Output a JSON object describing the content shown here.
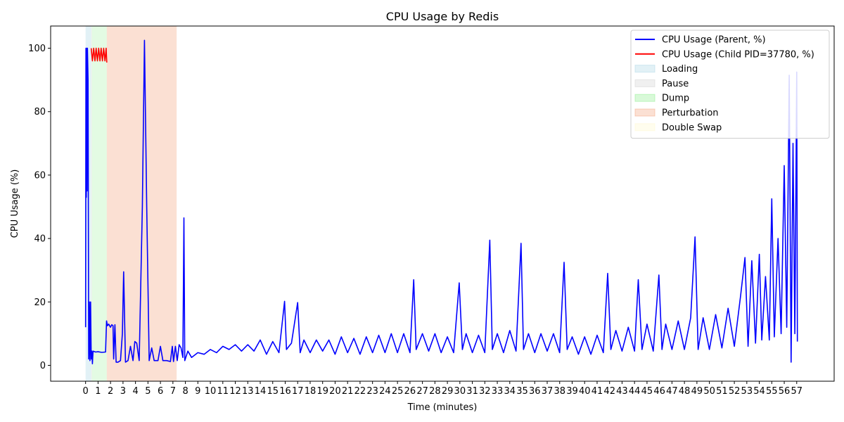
{
  "chart_data": {
    "type": "line",
    "title": "CPU Usage by Redis",
    "xlabel": "Time (minutes)",
    "ylabel": "CPU Usage (%)",
    "xlim": [
      -2.8,
      60.0
    ],
    "ylim": [
      -5,
      107
    ],
    "x_ticks": [
      0,
      1,
      2,
      3,
      4,
      5,
      6,
      7,
      8,
      9,
      10,
      11,
      12,
      13,
      14,
      15,
      16,
      17,
      18,
      19,
      20,
      21,
      22,
      23,
      24,
      25,
      26,
      27,
      28,
      29,
      30,
      31,
      32,
      33,
      34,
      35,
      36,
      37,
      38,
      39,
      40,
      41,
      42,
      43,
      44,
      45,
      46,
      47,
      48,
      49,
      50,
      51,
      52,
      53,
      54,
      55,
      56,
      57
    ],
    "y_ticks": [
      0,
      20,
      40,
      60,
      80,
      100
    ],
    "grid": false,
    "legend_position": "top-right",
    "phases": [
      {
        "name": "Loading",
        "start": 0.0,
        "end": 0.45,
        "color": "#add8e6",
        "opacity": 0.35
      },
      {
        "name": "Pause",
        "start": 0.45,
        "end": 0.5,
        "color": "#d3d3d3",
        "opacity": 0.35
      },
      {
        "name": "Dump",
        "start": 0.5,
        "end": 1.7,
        "color": "#90ee90",
        "opacity": 0.25
      },
      {
        "name": "Perturbation",
        "start": 1.7,
        "end": 7.3,
        "color": "#f4a582",
        "opacity": 0.35
      },
      {
        "name": "Double Swap",
        "start": 7.3,
        "end": 7.3,
        "color": "#fffacd",
        "opacity": 0.5
      }
    ],
    "series": [
      {
        "name": "CPU Usage (Parent, %)",
        "color": "#0000ff",
        "points": [
          [
            0.0,
            12
          ],
          [
            0.03,
            100
          ],
          [
            0.06,
            53
          ],
          [
            0.09,
            100
          ],
          [
            0.12,
            55
          ],
          [
            0.15,
            100
          ],
          [
            0.2,
            90
          ],
          [
            0.25,
            2
          ],
          [
            0.3,
            20
          ],
          [
            0.35,
            1.5
          ],
          [
            0.4,
            20
          ],
          [
            0.45,
            2
          ],
          [
            0.5,
            4.5
          ],
          [
            0.55,
            0.5
          ],
          [
            0.6,
            4.5
          ],
          [
            0.8,
            4.2
          ],
          [
            1.0,
            4.3
          ],
          [
            1.3,
            4.1
          ],
          [
            1.6,
            4.2
          ],
          [
            1.68,
            14
          ],
          [
            1.75,
            12.5
          ],
          [
            1.85,
            13
          ],
          [
            2.0,
            12
          ],
          [
            2.1,
            12.8
          ],
          [
            2.2,
            12.5
          ],
          [
            2.25,
            2
          ],
          [
            2.35,
            12.8
          ],
          [
            2.45,
            1
          ],
          [
            2.6,
            1
          ],
          [
            2.8,
            1.5
          ],
          [
            2.95,
            10
          ],
          [
            3.05,
            29.5
          ],
          [
            3.2,
            1
          ],
          [
            3.4,
            1.5
          ],
          [
            3.6,
            6
          ],
          [
            3.8,
            1.5
          ],
          [
            3.95,
            7.5
          ],
          [
            4.1,
            7
          ],
          [
            4.3,
            1.5
          ],
          [
            4.55,
            50
          ],
          [
            4.72,
            102.5
          ],
          [
            4.9,
            50
          ],
          [
            5.1,
            1.5
          ],
          [
            5.3,
            5.5
          ],
          [
            5.5,
            1.5
          ],
          [
            5.8,
            1.5
          ],
          [
            6.0,
            6
          ],
          [
            6.2,
            1.5
          ],
          [
            6.5,
            1.5
          ],
          [
            6.8,
            1.2
          ],
          [
            6.95,
            6
          ],
          [
            7.05,
            1.2
          ],
          [
            7.2,
            6
          ],
          [
            7.35,
            1.5
          ],
          [
            7.5,
            6.5
          ],
          [
            7.65,
            5.5
          ],
          [
            7.8,
            2.5
          ],
          [
            7.88,
            46.5
          ],
          [
            7.95,
            1.5
          ],
          [
            8.2,
            4.5
          ],
          [
            8.5,
            2.5
          ],
          [
            9.0,
            4
          ],
          [
            9.5,
            3.5
          ],
          [
            10.0,
            5
          ],
          [
            10.5,
            4
          ],
          [
            11.0,
            6
          ],
          [
            11.5,
            5
          ],
          [
            12.0,
            6.5
          ],
          [
            12.5,
            4.5
          ],
          [
            13.0,
            6.5
          ],
          [
            13.5,
            4.5
          ],
          [
            14.0,
            8
          ],
          [
            14.5,
            3.5
          ],
          [
            15.0,
            7.5
          ],
          [
            15.5,
            4
          ],
          [
            15.95,
            20.2
          ],
          [
            16.1,
            5
          ],
          [
            16.5,
            7
          ],
          [
            17.0,
            19.8
          ],
          [
            17.2,
            4
          ],
          [
            17.5,
            8
          ],
          [
            18.0,
            4
          ],
          [
            18.5,
            8
          ],
          [
            19.0,
            4.5
          ],
          [
            19.5,
            8
          ],
          [
            20.0,
            3.5
          ],
          [
            20.5,
            9
          ],
          [
            21.0,
            4
          ],
          [
            21.5,
            8.5
          ],
          [
            22.0,
            3.5
          ],
          [
            22.5,
            9
          ],
          [
            23.0,
            4
          ],
          [
            23.5,
            9.5
          ],
          [
            24.0,
            4
          ],
          [
            24.5,
            10
          ],
          [
            25.0,
            4
          ],
          [
            25.5,
            10
          ],
          [
            26.0,
            4
          ],
          [
            26.3,
            27
          ],
          [
            26.5,
            5
          ],
          [
            27.0,
            10
          ],
          [
            27.5,
            4.5
          ],
          [
            28.0,
            10
          ],
          [
            28.5,
            4
          ],
          [
            29.0,
            9
          ],
          [
            29.5,
            4
          ],
          [
            29.95,
            26
          ],
          [
            30.2,
            5
          ],
          [
            30.5,
            10
          ],
          [
            31.0,
            4
          ],
          [
            31.5,
            9.5
          ],
          [
            32.0,
            4
          ],
          [
            32.4,
            39.5
          ],
          [
            32.6,
            5
          ],
          [
            33.0,
            10
          ],
          [
            33.5,
            4
          ],
          [
            34.0,
            11
          ],
          [
            34.5,
            4.5
          ],
          [
            34.9,
            38.5
          ],
          [
            35.1,
            5
          ],
          [
            35.5,
            10
          ],
          [
            36.0,
            4
          ],
          [
            36.5,
            10
          ],
          [
            37.0,
            4.5
          ],
          [
            37.5,
            10
          ],
          [
            38.0,
            4
          ],
          [
            38.35,
            32.5
          ],
          [
            38.6,
            5
          ],
          [
            39.0,
            9
          ],
          [
            39.5,
            3.5
          ],
          [
            40.0,
            9
          ],
          [
            40.5,
            3.5
          ],
          [
            41.0,
            9.5
          ],
          [
            41.5,
            4
          ],
          [
            41.85,
            29
          ],
          [
            42.1,
            5
          ],
          [
            42.5,
            11
          ],
          [
            43.0,
            4.5
          ],
          [
            43.5,
            12
          ],
          [
            44.0,
            4.5
          ],
          [
            44.3,
            27
          ],
          [
            44.6,
            5
          ],
          [
            45.0,
            13
          ],
          [
            45.5,
            4.5
          ],
          [
            45.95,
            28.5
          ],
          [
            46.2,
            5
          ],
          [
            46.5,
            13
          ],
          [
            47.0,
            5
          ],
          [
            47.5,
            14
          ],
          [
            48.0,
            5
          ],
          [
            48.5,
            15
          ],
          [
            48.85,
            40.5
          ],
          [
            49.1,
            5
          ],
          [
            49.5,
            15
          ],
          [
            50.0,
            5
          ],
          [
            50.5,
            16
          ],
          [
            51.0,
            5.5
          ],
          [
            51.5,
            18
          ],
          [
            52.0,
            6
          ],
          [
            52.5,
            22
          ],
          [
            52.85,
            34
          ],
          [
            53.1,
            6
          ],
          [
            53.4,
            33
          ],
          [
            53.7,
            7
          ],
          [
            54.0,
            35
          ],
          [
            54.2,
            8
          ],
          [
            54.5,
            28
          ],
          [
            54.8,
            8
          ],
          [
            55.0,
            52.5
          ],
          [
            55.2,
            9
          ],
          [
            55.5,
            40
          ],
          [
            55.75,
            10
          ],
          [
            56.0,
            63
          ],
          [
            56.2,
            12
          ],
          [
            56.4,
            91.5
          ],
          [
            56.55,
            1
          ],
          [
            56.7,
            70
          ],
          [
            56.85,
            10
          ],
          [
            57.0,
            92.5
          ],
          [
            57.05,
            7.5
          ]
        ]
      },
      {
        "name": "CPU Usage (Child PID=37780, %)",
        "color": "#ff0000",
        "points": [
          [
            0.45,
            100
          ],
          [
            0.55,
            96
          ],
          [
            0.65,
            100
          ],
          [
            0.75,
            96
          ],
          [
            0.85,
            100
          ],
          [
            0.95,
            96
          ],
          [
            1.05,
            100
          ],
          [
            1.15,
            96
          ],
          [
            1.25,
            100
          ],
          [
            1.35,
            96
          ],
          [
            1.45,
            100
          ],
          [
            1.55,
            96
          ],
          [
            1.65,
            100
          ],
          [
            1.7,
            95.5
          ]
        ]
      }
    ],
    "legend": [
      {
        "label": "CPU Usage (Parent, %)",
        "kind": "line",
        "color": "#0000ff"
      },
      {
        "label": "CPU Usage (Child PID=37780, %)",
        "kind": "line",
        "color": "#ff0000"
      },
      {
        "label": "Loading",
        "kind": "patch",
        "color": "#add8e6"
      },
      {
        "label": "Pause",
        "kind": "patch",
        "color": "#d3d3d3"
      },
      {
        "label": "Dump",
        "kind": "patch",
        "color": "#90ee90"
      },
      {
        "label": "Perturbation",
        "kind": "patch",
        "color": "#f4a582"
      },
      {
        "label": "Double Swap",
        "kind": "patch",
        "color": "#fffacd"
      }
    ]
  }
}
